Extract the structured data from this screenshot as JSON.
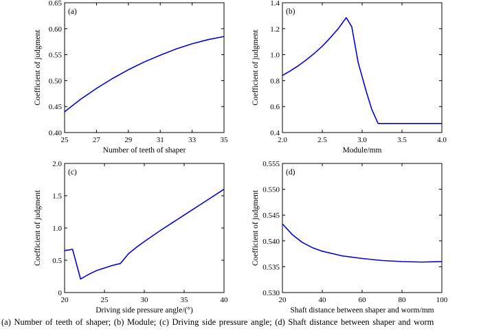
{
  "chart_data": [
    {
      "type": "line",
      "panel": "(a)",
      "xlabel": "Number of teeth of shaper",
      "ylabel": "Coefficient of judgment",
      "xlim": [
        25,
        35
      ],
      "ylim": [
        0.4,
        0.65
      ],
      "xticks": [
        25,
        27,
        29,
        31,
        33,
        35
      ],
      "xtick_labels": [
        "25",
        "27",
        "29",
        "31",
        "33",
        "35"
      ],
      "yticks": [
        0.4,
        0.45,
        0.5,
        0.55,
        0.6,
        0.65
      ],
      "ytick_labels": [
        "0.40",
        "0.45",
        "0.50",
        "0.55",
        "0.60",
        "0.65"
      ],
      "series": [
        {
          "color": "#0000dd",
          "x": [
            25,
            26,
            27,
            28,
            29,
            30,
            31,
            32,
            33,
            34,
            35
          ],
          "y": [
            0.44,
            0.464,
            0.485,
            0.504,
            0.521,
            0.536,
            0.549,
            0.561,
            0.571,
            0.579,
            0.585
          ]
        }
      ]
    },
    {
      "type": "line",
      "panel": "(b)",
      "xlabel": "Module/mm",
      "ylabel": "Coefficient of judgment",
      "xlim": [
        2.0,
        4.0
      ],
      "ylim": [
        0.4,
        1.4
      ],
      "xticks": [
        2.0,
        2.5,
        3.0,
        3.5,
        4.0
      ],
      "xtick_labels": [
        "2.0",
        "2.5",
        "3.0",
        "3.5",
        "4.0"
      ],
      "yticks": [
        0.4,
        0.6,
        0.8,
        1.0,
        1.2,
        1.4
      ],
      "ytick_labels": [
        "0.4",
        "0.6",
        "0.8",
        "1.0",
        "1.2",
        "1.4"
      ],
      "series": [
        {
          "color": "#0000dd",
          "x": [
            2.0,
            2.1,
            2.2,
            2.3,
            2.4,
            2.5,
            2.6,
            2.7,
            2.8,
            2.87,
            2.95,
            3.05,
            3.12,
            3.2,
            3.5,
            4.0
          ],
          "y": [
            0.84,
            0.875,
            0.915,
            0.96,
            1.01,
            1.065,
            1.13,
            1.2,
            1.285,
            1.215,
            0.94,
            0.72,
            0.58,
            0.47,
            0.47,
            0.47
          ]
        }
      ]
    },
    {
      "type": "line",
      "panel": "(c)",
      "xlabel": "Driving side pressure angle/(°)",
      "ylabel": "Coefficient of judgment",
      "xlim": [
        20,
        40
      ],
      "ylim": [
        0,
        2.0
      ],
      "xticks": [
        20,
        25,
        30,
        35,
        40
      ],
      "xtick_labels": [
        "20",
        "25",
        "30",
        "35",
        "40"
      ],
      "yticks": [
        0,
        0.5,
        1.0,
        1.5,
        2.0
      ],
      "ytick_labels": [
        "0",
        "0.5",
        "1.0",
        "1.5",
        "2.0"
      ],
      "series": [
        {
          "color": "#0000dd",
          "x": [
            20,
            21,
            22,
            23,
            24,
            25,
            26,
            27,
            28,
            29,
            30,
            32,
            35,
            38,
            40
          ],
          "y": [
            0.65,
            0.67,
            0.21,
            0.28,
            0.34,
            0.38,
            0.42,
            0.45,
            0.6,
            0.7,
            0.79,
            0.96,
            1.2,
            1.44,
            1.6
          ]
        }
      ]
    },
    {
      "type": "line",
      "panel": "(d)",
      "xlabel": "Shaft distance between shaper and worm/mm",
      "ylabel": "Coefficient of judgment",
      "xlim": [
        20,
        100
      ],
      "ylim": [
        0.53,
        0.555
      ],
      "xticks": [
        20,
        40,
        60,
        80,
        100
      ],
      "xtick_labels": [
        "20",
        "40",
        "60",
        "80",
        "100"
      ],
      "yticks": [
        0.53,
        0.535,
        0.54,
        0.545,
        0.55,
        0.555
      ],
      "ytick_labels": [
        "0.530",
        "0.535",
        "0.540",
        "0.545",
        "0.550",
        "0.555"
      ],
      "series": [
        {
          "color": "#0000dd",
          "x": [
            20,
            25,
            30,
            35,
            40,
            50,
            60,
            70,
            80,
            90,
            100
          ],
          "y": [
            0.5433,
            0.5412,
            0.5397,
            0.5387,
            0.538,
            0.5371,
            0.5366,
            0.5362,
            0.536,
            0.5359,
            0.536
          ]
        }
      ]
    }
  ],
  "caption": "(a) Number of teeth of shaper; (b) Module; (c) Driving side pressure angle; (d) Shaft distance between shaper and worm"
}
